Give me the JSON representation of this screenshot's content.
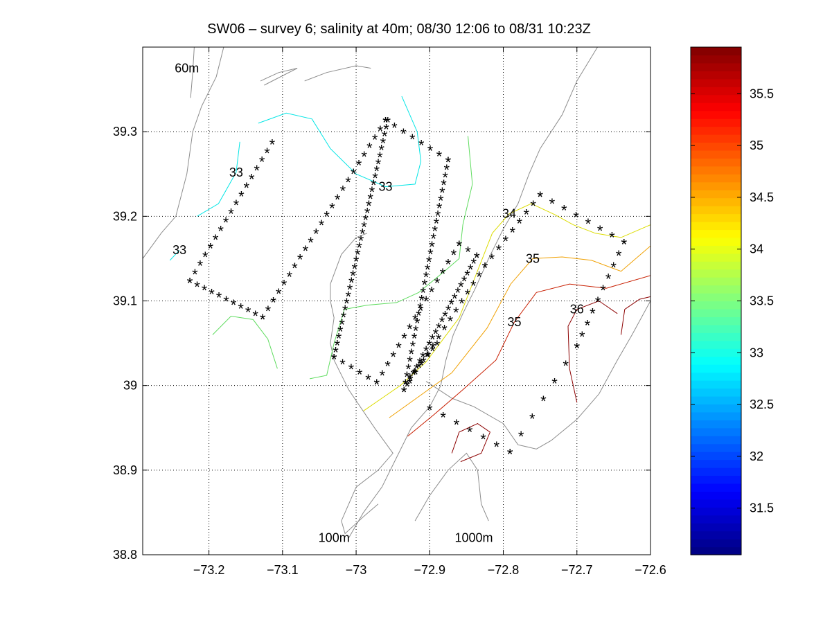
{
  "chart_data": {
    "type": "scatter",
    "title": "SW06 – survey 6; salinity at 40m; 08/30 12:06 to 08/31 10:23Z",
    "xlabel": "",
    "ylabel": "",
    "xlim": [
      -73.29,
      -72.6
    ],
    "ylim": [
      38.8,
      39.4
    ],
    "xticks": [
      -73.2,
      -73.1,
      -73.0,
      -72.9,
      -72.8,
      -72.7,
      -72.6
    ],
    "xtick_labels": [
      "−73.2",
      "−73.1",
      "−73",
      "−72.9",
      "−72.8",
      "−72.7",
      "−72.6"
    ],
    "yticks": [
      38.8,
      38.9,
      39.0,
      39.1,
      39.2,
      39.3
    ],
    "ytick_labels": [
      "38.8",
      "38.9",
      "39",
      "39.1",
      "39.2",
      "39.3"
    ],
    "grid": true,
    "depth_labels": [
      {
        "text": "60m",
        "x": -73.23,
        "y": 39.37
      },
      {
        "text": "100m",
        "x": -73.03,
        "y": 38.815
      },
      {
        "text": "1000m",
        "x": -72.84,
        "y": 38.815
      }
    ],
    "marker": {
      "symbol": "*",
      "color": "#00008f"
    },
    "station_tracks": [
      {
        "from": [
          -73.226,
          39.122
        ],
        "to": [
          -73.114,
          39.286
        ],
        "n": 17
      },
      {
        "from": [
          -73.226,
          39.122
        ],
        "to": [
          -73.127,
          39.079
        ],
        "n": 11
      },
      {
        "from": [
          -73.127,
          39.079
        ],
        "to": [
          -72.96,
          39.312
        ],
        "n": 24
      },
      {
        "from": [
          -72.96,
          39.312
        ],
        "to": [
          -72.875,
          39.265
        ],
        "n": 8
      },
      {
        "from": [
          -72.875,
          39.265
        ],
        "to": [
          -72.933,
          39.002
        ],
        "n": 30
      },
      {
        "from": [
          -72.933,
          39.002
        ],
        "to": [
          -72.89,
          39.048
        ],
        "n": 8
      },
      {
        "from": [
          -73.03,
          39.032
        ],
        "to": [
          -72.957,
          39.312
        ],
        "n": 35
      },
      {
        "from": [
          -73.03,
          39.032
        ],
        "to": [
          -72.972,
          39.002
        ],
        "n": 6
      },
      {
        "from": [
          -72.972,
          39.002
        ],
        "to": [
          -72.86,
          39.166
        ],
        "n": 16
      },
      {
        "from": [
          -72.86,
          39.166
        ],
        "to": [
          -72.836,
          39.152
        ],
        "n": 3
      },
      {
        "from": [
          -72.836,
          39.152
        ],
        "to": [
          -72.935,
          38.993
        ],
        "n": 24
      },
      {
        "from": [
          -72.935,
          38.993
        ],
        "to": [
          -72.825,
          39.14
        ],
        "n": 15
      },
      {
        "from": [
          -72.825,
          39.14
        ],
        "to": [
          -72.75,
          39.224
        ],
        "n": 9
      },
      {
        "from": [
          -72.75,
          39.224
        ],
        "to": [
          -72.636,
          39.168
        ],
        "n": 8
      },
      {
        "from": [
          -72.636,
          39.168
        ],
        "to": [
          -72.7,
          39.045
        ],
        "n": 10
      },
      {
        "from": [
          -72.7,
          39.045
        ],
        "to": [
          -72.791,
          38.92
        ],
        "n": 7
      },
      {
        "from": [
          -72.791,
          38.92
        ],
        "to": [
          -72.9,
          38.972
        ],
        "n": 7
      }
    ],
    "contours": [
      {
        "level": 33,
        "label": "33",
        "color": "#00e5e5",
        "points": [
          [
            -73.216,
            39.2
          ],
          [
            -73.187,
            39.215
          ],
          [
            -73.163,
            39.252
          ],
          [
            -73.158,
            39.288
          ]
        ]
      },
      {
        "level": 33,
        "label": "33",
        "color": "#00e5e5",
        "points": [
          [
            -73.253,
            39.148
          ],
          [
            -73.24,
            39.16
          ]
        ]
      },
      {
        "level": 33,
        "label": "33",
        "color": "#00e5e5",
        "points": [
          [
            -73.133,
            39.31
          ],
          [
            -73.095,
            39.322
          ],
          [
            -73.06,
            39.315
          ],
          [
            -73.035,
            39.28
          ],
          [
            -73.0,
            39.25
          ],
          [
            -72.96,
            39.235
          ],
          [
            -72.92,
            39.238
          ],
          [
            -72.912,
            39.265
          ],
          [
            -72.917,
            39.3
          ],
          [
            -72.938,
            39.342
          ]
        ]
      },
      {
        "level": 33.5,
        "label": "",
        "color": "#5fdc5f",
        "points": [
          [
            -73.195,
            39.06
          ],
          [
            -73.17,
            39.082
          ],
          [
            -73.14,
            39.078
          ],
          [
            -73.12,
            39.055
          ],
          [
            -73.107,
            39.02
          ]
        ]
      },
      {
        "level": 33.5,
        "label": "",
        "color": "#5fdc5f",
        "points": [
          [
            -73.063,
            39.008
          ],
          [
            -73.04,
            39.012
          ],
          [
            -73.03,
            39.05
          ],
          [
            -73.016,
            39.09
          ],
          [
            -72.985,
            39.095
          ],
          [
            -72.945,
            39.098
          ],
          [
            -72.915,
            39.11
          ],
          [
            -72.88,
            39.135
          ],
          [
            -72.86,
            39.15
          ],
          [
            -72.855,
            39.19
          ],
          [
            -72.842,
            39.238
          ],
          [
            -72.848,
            39.295
          ]
        ]
      },
      {
        "level": 34,
        "label": "34",
        "color": "#dcdc00",
        "points": [
          [
            -72.99,
            38.97
          ],
          [
            -72.965,
            38.985
          ],
          [
            -72.94,
            39.0
          ],
          [
            -72.905,
            39.028
          ],
          [
            -72.86,
            39.08
          ],
          [
            -72.833,
            39.14
          ],
          [
            -72.815,
            39.18
          ],
          [
            -72.792,
            39.203
          ],
          [
            -72.762,
            39.215
          ],
          [
            -72.73,
            39.202
          ],
          [
            -72.705,
            39.19
          ],
          [
            -72.675,
            39.18
          ],
          [
            -72.64,
            39.175
          ],
          [
            -72.6,
            39.19
          ]
        ]
      },
      {
        "level": 34.5,
        "label": "35",
        "color": "#f0a000",
        "points": [
          [
            -72.955,
            38.962
          ],
          [
            -72.91,
            38.99
          ],
          [
            -72.87,
            39.015
          ],
          [
            -72.822,
            39.068
          ],
          [
            -72.79,
            39.12
          ],
          [
            -72.76,
            39.15
          ],
          [
            -72.72,
            39.152
          ],
          [
            -72.68,
            39.148
          ],
          [
            -72.64,
            39.135
          ],
          [
            -72.6,
            39.165
          ]
        ]
      },
      {
        "level": 35,
        "label": "35",
        "color": "#c81e00",
        "points": [
          [
            -72.93,
            38.94
          ],
          [
            -72.895,
            38.965
          ],
          [
            -72.855,
            38.995
          ],
          [
            -72.81,
            39.03
          ],
          [
            -72.785,
            39.075
          ],
          [
            -72.755,
            39.11
          ],
          [
            -72.71,
            39.12
          ],
          [
            -72.66,
            39.115
          ],
          [
            -72.6,
            39.13
          ]
        ]
      },
      {
        "level": 35.5,
        "label": "36",
        "color": "#8c0000",
        "points": [
          [
            -72.7,
            38.98
          ],
          [
            -72.71,
            39.02
          ],
          [
            -72.712,
            39.07
          ],
          [
            -72.7,
            39.09
          ],
          [
            -72.67,
            39.1
          ],
          [
            -72.645,
            39.085
          ]
        ]
      },
      {
        "level": 35.5,
        "label": "",
        "color": "#8c0000",
        "points": [
          [
            -72.87,
            38.92
          ],
          [
            -72.86,
            38.945
          ],
          [
            -72.835,
            38.955
          ],
          [
            -72.818,
            38.945
          ],
          [
            -72.83,
            38.92
          ],
          [
            -72.858,
            38.91
          ]
        ]
      },
      {
        "level": 35.5,
        "label": "",
        "color": "#8c0000",
        "points": [
          [
            -72.64,
            39.06
          ],
          [
            -72.635,
            39.09
          ],
          [
            -72.615,
            39.102
          ],
          [
            -72.6,
            39.105
          ]
        ]
      }
    ],
    "bathymetry": [
      {
        "points": [
          [
            -73.29,
            39.15
          ],
          [
            -73.265,
            39.18
          ],
          [
            -73.245,
            39.2
          ],
          [
            -73.23,
            39.25
          ],
          [
            -73.222,
            39.3
          ],
          [
            -73.21,
            39.33
          ],
          [
            -73.19,
            39.365
          ],
          [
            -73.18,
            39.4
          ]
        ]
      },
      {
        "points": [
          [
            -73.22,
            39.4
          ],
          [
            -73.222,
            39.37
          ],
          [
            -73.225,
            39.34
          ]
        ]
      },
      {
        "points": [
          [
            -73.13,
            39.36
          ],
          [
            -73.105,
            39.37
          ],
          [
            -73.08,
            39.375
          ],
          [
            -73.125,
            39.355
          ]
        ]
      },
      {
        "points": [
          [
            -73.07,
            39.36
          ],
          [
            -73.04,
            39.37
          ],
          [
            -73.0,
            39.378
          ],
          [
            -72.98,
            39.375
          ]
        ]
      },
      {
        "points": [
          [
            -72.985,
            39.18
          ],
          [
            -73.0,
            39.175
          ],
          [
            -73.02,
            39.155
          ],
          [
            -73.035,
            39.12
          ],
          [
            -73.035,
            39.1
          ],
          [
            -73.03,
            39.08
          ],
          [
            -73.035,
            39.05
          ],
          [
            -73.03,
            39.03
          ],
          [
            -73.01,
            38.995
          ],
          [
            -72.975,
            38.95
          ],
          [
            -72.95,
            38.92
          ],
          [
            -72.97,
            38.9
          ],
          [
            -73.0,
            38.88
          ],
          [
            -73.02,
            38.84
          ],
          [
            -73.015,
            38.825
          ],
          [
            -72.99,
            38.845
          ],
          [
            -72.97,
            38.86
          ]
        ]
      },
      {
        "points": [
          [
            -72.672,
            39.4
          ],
          [
            -72.7,
            39.36
          ],
          [
            -72.72,
            39.32
          ],
          [
            -72.75,
            39.28
          ],
          [
            -72.765,
            39.25
          ],
          [
            -72.78,
            39.215
          ],
          [
            -72.8,
            39.185
          ],
          [
            -72.82,
            39.15
          ],
          [
            -72.838,
            39.115
          ],
          [
            -72.855,
            39.085
          ],
          [
            -72.868,
            39.06
          ],
          [
            -72.878,
            39.03
          ],
          [
            -72.885,
            39.0
          ],
          [
            -72.9,
            38.975
          ],
          [
            -72.925,
            38.95
          ],
          [
            -72.945,
            38.915
          ],
          [
            -72.965,
            38.88
          ],
          [
            -72.99,
            38.85
          ],
          [
            -73.01,
            38.82
          ]
        ]
      },
      {
        "points": [
          [
            -72.92,
            38.84
          ],
          [
            -72.9,
            38.87
          ],
          [
            -72.875,
            38.9
          ],
          [
            -72.85,
            38.92
          ],
          [
            -72.835,
            38.9
          ],
          [
            -72.83,
            38.86
          ],
          [
            -72.82,
            38.84
          ]
        ]
      },
      {
        "points": [
          [
            -72.6,
            39.1
          ],
          [
            -72.625,
            39.06
          ],
          [
            -72.645,
            39.03
          ],
          [
            -72.67,
            38.99
          ],
          [
            -72.7,
            38.96
          ],
          [
            -72.735,
            38.935
          ],
          [
            -72.755,
            38.925
          ],
          [
            -72.78,
            38.93
          ],
          [
            -72.8,
            38.955
          ],
          [
            -72.84,
            38.975
          ],
          [
            -72.87,
            38.985
          ],
          [
            -72.905,
            39.005
          ]
        ]
      }
    ],
    "colorbar": {
      "colormap": "jet",
      "range": [
        31.05,
        35.95
      ],
      "ticks": [
        31.5,
        32,
        32.5,
        33,
        33.5,
        34,
        34.5,
        35,
        35.5
      ],
      "tick_labels": [
        "31.5",
        "32",
        "32.5",
        "33",
        "33.5",
        "34",
        "34.5",
        "35",
        "35.5"
      ],
      "levels": 64
    }
  }
}
